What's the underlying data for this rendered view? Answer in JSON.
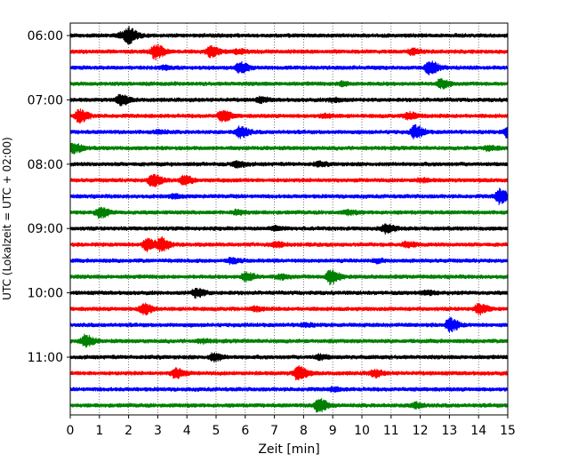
{
  "chart_data": {
    "type": "line",
    "xlabel": "Zeit  [min]",
    "ylabel": "UTC (Lokalzeit = UTC + 02:00)",
    "xlim": [
      0,
      15
    ],
    "x_ticks": [
      "0",
      "1",
      "2",
      "3",
      "4",
      "5",
      "6",
      "7",
      "8",
      "9",
      "10",
      "11",
      "12",
      "13",
      "14",
      "15"
    ],
    "y_tick_labels": [
      "06:00",
      "07:00",
      "08:00",
      "09:00",
      "10:00",
      "11:00"
    ],
    "grid": "vertical dotted",
    "colors": [
      "#000000",
      "#ff0000",
      "#0000ff",
      "#008000"
    ],
    "traces": [
      {
        "hour": "06:00",
        "color": "#000000",
        "events": [
          [
            2.0,
            1.0
          ],
          [
            1.7,
            0.3
          ]
        ]
      },
      {
        "hour": "06:15",
        "color": "#ff0000",
        "events": [
          [
            2.9,
            1.0
          ],
          [
            4.8,
            0.7
          ],
          [
            11.7,
            0.35
          ],
          [
            5.7,
            0.3
          ]
        ]
      },
      {
        "hour": "06:30",
        "color": "#0000ff",
        "events": [
          [
            12.3,
            1.0
          ],
          [
            5.8,
            0.8
          ],
          [
            3.2,
            0.2
          ]
        ]
      },
      {
        "hour": "06:45",
        "color": "#008000",
        "events": [
          [
            12.7,
            0.6
          ],
          [
            9.3,
            0.25
          ]
        ]
      },
      {
        "hour": "07:00",
        "color": "#000000",
        "events": [
          [
            1.7,
            0.7
          ],
          [
            6.5,
            0.3
          ],
          [
            9.0,
            0.25
          ]
        ]
      },
      {
        "hour": "07:15",
        "color": "#ff0000",
        "events": [
          [
            0.3,
            0.9
          ],
          [
            5.2,
            0.8
          ],
          [
            11.6,
            0.5
          ],
          [
            8.7,
            0.25
          ]
        ]
      },
      {
        "hour": "07:30",
        "color": "#0000ff",
        "events": [
          [
            5.8,
            0.8
          ],
          [
            11.8,
            0.9
          ],
          [
            15.0,
            0.9
          ],
          [
            3.0,
            0.2
          ]
        ]
      },
      {
        "hour": "07:45",
        "color": "#008000",
        "events": [
          [
            0.1,
            0.7
          ],
          [
            14.3,
            0.3
          ]
        ]
      },
      {
        "hour": "08:00",
        "color": "#000000",
        "events": [
          [
            5.7,
            0.45
          ],
          [
            8.5,
            0.25
          ]
        ]
      },
      {
        "hour": "08:15",
        "color": "#ff0000",
        "events": [
          [
            2.8,
            0.9
          ],
          [
            3.9,
            0.6
          ],
          [
            12.0,
            0.2
          ]
        ]
      },
      {
        "hour": "08:30",
        "color": "#0000ff",
        "events": [
          [
            14.7,
            1.0
          ],
          [
            3.5,
            0.2
          ]
        ]
      },
      {
        "hour": "08:45",
        "color": "#008000",
        "events": [
          [
            1.0,
            0.7
          ],
          [
            5.7,
            0.3
          ],
          [
            9.5,
            0.25
          ]
        ]
      },
      {
        "hour": "09:00",
        "color": "#000000",
        "events": [
          [
            10.8,
            0.6
          ],
          [
            7.0,
            0.2
          ]
        ]
      },
      {
        "hour": "09:15",
        "color": "#ff0000",
        "events": [
          [
            2.6,
            0.8
          ],
          [
            3.1,
            0.9
          ],
          [
            7.0,
            0.35
          ],
          [
            11.5,
            0.35
          ]
        ]
      },
      {
        "hour": "09:30",
        "color": "#0000ff",
        "events": [
          [
            5.5,
            0.3
          ],
          [
            10.5,
            0.2
          ]
        ]
      },
      {
        "hour": "09:45",
        "color": "#008000",
        "events": [
          [
            8.9,
            1.0
          ],
          [
            6.0,
            0.6
          ],
          [
            7.2,
            0.3
          ]
        ]
      },
      {
        "hour": "10:00",
        "color": "#000000",
        "events": [
          [
            4.3,
            0.6
          ],
          [
            12.2,
            0.25
          ]
        ]
      },
      {
        "hour": "10:15",
        "color": "#ff0000",
        "events": [
          [
            2.5,
            0.8
          ],
          [
            14.0,
            0.7
          ],
          [
            6.3,
            0.25
          ]
        ]
      },
      {
        "hour": "10:30",
        "color": "#0000ff",
        "events": [
          [
            13.0,
            0.9
          ],
          [
            8.0,
            0.2
          ]
        ]
      },
      {
        "hour": "10:45",
        "color": "#008000",
        "events": [
          [
            0.5,
            0.8
          ],
          [
            4.5,
            0.2
          ]
        ]
      },
      {
        "hour": "11:00",
        "color": "#000000",
        "events": [
          [
            4.9,
            0.5
          ],
          [
            8.5,
            0.3
          ]
        ]
      },
      {
        "hour": "11:15",
        "color": "#ff0000",
        "events": [
          [
            7.8,
            1.0
          ],
          [
            3.6,
            0.7
          ],
          [
            10.4,
            0.45
          ]
        ]
      },
      {
        "hour": "11:30",
        "color": "#0000ff",
        "events": [
          [
            9.0,
            0.2
          ]
        ]
      },
      {
        "hour": "11:45",
        "color": "#008000",
        "events": [
          [
            8.5,
            1.0
          ],
          [
            11.8,
            0.35
          ]
        ]
      }
    ]
  }
}
